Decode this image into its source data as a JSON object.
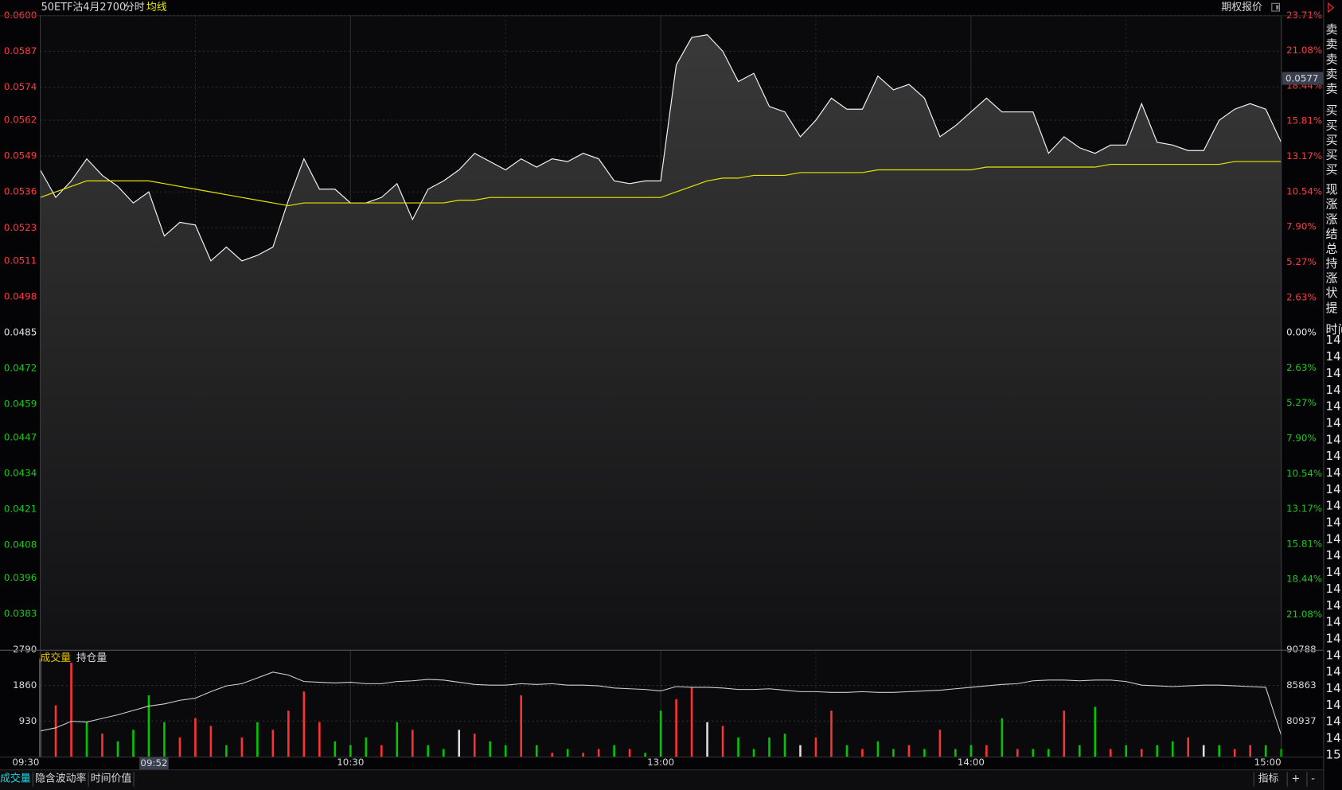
{
  "panel_title": "期权报价",
  "chart_data": [
    {
      "type": "line",
      "title": "50ETF沽4月2700",
      "x": [
        0,
        3,
        6,
        9,
        12,
        15,
        18,
        21,
        24,
        27,
        30,
        33,
        36,
        39,
        42,
        45,
        48,
        51,
        54,
        57,
        60,
        63,
        66,
        69,
        72,
        75,
        78,
        81,
        84,
        87,
        90,
        93,
        96,
        99,
        102,
        105,
        108,
        111,
        114,
        117,
        120,
        123,
        126,
        129,
        132,
        135,
        138,
        141,
        144,
        147,
        150,
        153,
        156,
        159,
        162,
        165,
        168,
        171,
        174,
        177,
        180,
        183,
        186,
        189,
        192,
        195,
        198,
        201,
        204,
        207,
        210,
        213,
        216,
        219,
        222,
        225,
        228,
        231,
        234,
        237,
        240
      ],
      "xlim": [
        0,
        240
      ],
      "xticks": [
        {
          "value": 0,
          "label": "09:30"
        },
        {
          "value": 60,
          "label": "10:30"
        },
        {
          "value": 120,
          "label": "13:00"
        },
        {
          "value": 180,
          "label": "14:00"
        },
        {
          "value": 240,
          "label": "15:00"
        }
      ],
      "cursor_time": {
        "value": 22,
        "label": "09:52"
      },
      "ylim": [
        0.037,
        0.06
      ],
      "yticks": [
        {
          "value": 0.06,
          "label": "0.0600"
        },
        0.0587,
        0.0574,
        0.0562,
        0.0549,
        0.0536,
        0.0523,
        0.0511,
        0.0498,
        0.0485,
        0.0472,
        0.0459,
        0.0447,
        0.0434,
        0.0421,
        0.0408,
        0.0396,
        0.0383
      ],
      "y2lim": [
        -23.71,
        23.71
      ],
      "y2ticks": [
        {
          "value": 23.71,
          "label": "23.71%"
        },
        {
          "value": 21.08,
          "label": "21.08%"
        },
        {
          "value": 18.44,
          "label": "18.44%"
        },
        {
          "value": 15.81,
          "label": "15.81%"
        },
        {
          "value": 13.17,
          "label": "13.17%"
        },
        {
          "value": 10.54,
          "label": "10.54%"
        },
        {
          "value": 7.9,
          "label": "7.90%"
        },
        {
          "value": 5.27,
          "label": "5.27%"
        },
        {
          "value": 2.63,
          "label": "2.63%"
        },
        {
          "value": 0,
          "label": "0.00%"
        },
        {
          "value": -2.63,
          "label": "2.63%"
        },
        {
          "value": -5.27,
          "label": "5.27%"
        },
        {
          "value": -7.9,
          "label": "7.90%"
        },
        {
          "value": -10.54,
          "label": "10.54%"
        },
        {
          "value": -13.17,
          "label": "13.17%"
        },
        {
          "value": -15.81,
          "label": "15.81%"
        },
        {
          "value": -18.44,
          "label": "18.44%"
        },
        {
          "value": -21.08,
          "label": "21.08%"
        }
      ],
      "cursor_price": {
        "value": 0.0577,
        "label": "0.0577"
      },
      "grid": true,
      "series": [
        {
          "name": "分时",
          "color": "#f2f2f2",
          "fill": true,
          "values": [
            0.0544,
            0.0534,
            0.054,
            0.0548,
            0.0542,
            0.0538,
            0.0532,
            0.0536,
            0.052,
            0.0525,
            0.0524,
            0.0511,
            0.0516,
            0.0511,
            0.0513,
            0.0516,
            0.0533,
            0.0548,
            0.0537,
            0.0537,
            0.0532,
            0.0532,
            0.0534,
            0.0539,
            0.0526,
            0.0537,
            0.054,
            0.0544,
            0.055,
            0.0547,
            0.0544,
            0.0548,
            0.0545,
            0.0548,
            0.0547,
            0.055,
            0.0548,
            0.054,
            0.0539,
            0.054,
            0.054,
            0.0582,
            0.0592,
            0.0593,
            0.0587,
            0.0576,
            0.0579,
            0.0567,
            0.0565,
            0.0556,
            0.0562,
            0.057,
            0.0566,
            0.0566,
            0.0578,
            0.0573,
            0.0575,
            0.057,
            0.0556,
            0.056,
            0.0565,
            0.057,
            0.0565,
            0.0565,
            0.0565,
            0.055,
            0.0556,
            0.0552,
            0.055,
            0.0553,
            0.0553,
            0.0568,
            0.0554,
            0.0553,
            0.0551,
            0.0551,
            0.0562,
            0.0566,
            0.0568,
            0.0566,
            0.0554
          ]
        },
        {
          "name": "均线",
          "color": "#e6e600",
          "values": [
            0.0534,
            0.0536,
            0.0538,
            0.054,
            0.054,
            0.054,
            0.054,
            0.054,
            0.0539,
            0.0538,
            0.0537,
            0.0536,
            0.0535,
            0.0534,
            0.0533,
            0.0532,
            0.0531,
            0.0532,
            0.0532,
            0.0532,
            0.0532,
            0.0532,
            0.0532,
            0.0532,
            0.0532,
            0.0532,
            0.0532,
            0.0533,
            0.0533,
            0.0534,
            0.0534,
            0.0534,
            0.0534,
            0.0534,
            0.0534,
            0.0534,
            0.0534,
            0.0534,
            0.0534,
            0.0534,
            0.0534,
            0.0536,
            0.0538,
            0.054,
            0.0541,
            0.0541,
            0.0542,
            0.0542,
            0.0542,
            0.0543,
            0.0543,
            0.0543,
            0.0543,
            0.0543,
            0.0544,
            0.0544,
            0.0544,
            0.0544,
            0.0544,
            0.0544,
            0.0544,
            0.0545,
            0.0545,
            0.0545,
            0.0545,
            0.0545,
            0.0545,
            0.0545,
            0.0545,
            0.0546,
            0.0546,
            0.0546,
            0.0546,
            0.0546,
            0.0546,
            0.0546,
            0.0546,
            0.0547,
            0.0547,
            0.0547,
            0.0547
          ]
        }
      ]
    },
    {
      "type": "combo",
      "ylim": [
        0,
        2790
      ],
      "yticks": [
        2790,
        1860,
        930
      ],
      "y2lim": [
        76011,
        90788
      ],
      "y2ticks": [
        90788,
        85863,
        80937
      ],
      "grid": true,
      "series": [
        {
          "name": "成交量",
          "type": "bar",
          "color": "#e6c200",
          "values": [
            2560,
            1340,
            2450,
            900,
            600,
            400,
            700,
            1600,
            900,
            500,
            1000,
            800,
            300,
            500,
            900,
            700,
            1200,
            1700,
            900,
            400,
            300,
            500,
            300,
            900,
            700,
            300,
            200,
            700,
            600,
            400,
            300,
            1600,
            300,
            100,
            200,
            100,
            200,
            300,
            200,
            100,
            1200,
            1500,
            1800,
            900,
            800,
            500,
            200,
            500,
            600,
            300,
            500,
            1200,
            300,
            200,
            400,
            200,
            300,
            200,
            700,
            200,
            300,
            300,
            1000,
            200,
            200,
            200,
            1200,
            300,
            1300,
            200,
            300,
            200,
            300,
            400,
            500,
            300,
            300,
            200,
            300,
            300,
            200
          ],
          "colors": [
            "#ff3232",
            "#ff3232",
            "#ff3232",
            "#00c800",
            "#ff3232",
            "#00c800",
            "#00c800",
            "#00c800",
            "#00c800",
            "#ff3232",
            "#ff3232",
            "#ff3232",
            "#00c800",
            "#ff3232",
            "#00c800",
            "#ff3232",
            "#ff3232",
            "#ff3232",
            "#ff3232",
            "#00c800",
            "#00c800",
            "#00c800",
            "#ff3232",
            "#00c800",
            "#ff3232",
            "#00c800",
            "#00c800",
            "#dddddd",
            "#ff3232",
            "#00c800",
            "#00c800",
            "#ff3232",
            "#00c800",
            "#ff3232",
            "#00c800",
            "#ff3232",
            "#ff3232",
            "#00c800",
            "#ff3232",
            "#00c800",
            "#00c800",
            "#ff3232",
            "#ff3232",
            "#dddddd",
            "#ff3232",
            "#00c800",
            "#00c800",
            "#00c800",
            "#00c800",
            "#dddddd",
            "#ff3232",
            "#ff3232",
            "#00c800",
            "#ff3232",
            "#00c800",
            "#00c800",
            "#ff3232",
            "#00c800",
            "#ff3232",
            "#00c800",
            "#00c800",
            "#ff3232",
            "#00c800",
            "#ff3232",
            "#00c800",
            "#00c800",
            "#ff3232",
            "#00c800",
            "#00c800",
            "#ff3232",
            "#00c800",
            "#ff3232",
            "#00c800",
            "#00c800",
            "#ff3232",
            "#dddddd",
            "#00c800",
            "#ff3232",
            "#ff3232",
            "#00c800",
            "#00c800"
          ]
        },
        {
          "name": "持仓量",
          "type": "line",
          "axis": "y2",
          "color": "#d0d0d0",
          "values": [
            79558,
            80000,
            80900,
            80800,
            81300,
            81800,
            82400,
            83000,
            83300,
            83800,
            84100,
            85000,
            85800,
            86100,
            86900,
            87700,
            87300,
            86400,
            86300,
            86200,
            86300,
            86100,
            86100,
            86400,
            86500,
            86700,
            86600,
            86300,
            86000,
            85900,
            85900,
            86100,
            86000,
            86100,
            85900,
            85900,
            85800,
            85500,
            85400,
            85300,
            85100,
            85700,
            85600,
            85600,
            85500,
            85300,
            85300,
            85400,
            85200,
            85000,
            85000,
            84900,
            84900,
            85000,
            84900,
            84900,
            85000,
            85100,
            85200,
            85400,
            85600,
            85800,
            86000,
            86100,
            86500,
            86600,
            86600,
            86500,
            86600,
            86600,
            86400,
            85900,
            85800,
            85700,
            85800,
            85900,
            85900,
            85800,
            85700,
            85600,
            78970
          ]
        }
      ]
    }
  ],
  "tabs": [
    "成交量",
    "隐含波动率",
    "时间价值"
  ],
  "tools": [
    "指标",
    "+",
    "-"
  ],
  "side_panel": [
    "卖",
    "卖",
    "卖",
    "卖",
    "卖",
    "买",
    "买",
    "买",
    "买",
    "买",
    "现",
    "涨",
    "涨",
    "结",
    "总",
    "持",
    "涨",
    "状",
    "提",
    "时间",
    "14:",
    "14:",
    "14:",
    "14:",
    "14:",
    "14:",
    "14:",
    "14:",
    "14:",
    "14:",
    "14:",
    "14:",
    "14:",
    "14:",
    "14:",
    "14:",
    "14:",
    "14:",
    "14:",
    "14:",
    "14:",
    "14:",
    "14:",
    "14:",
    "14:",
    "15:"
  ]
}
